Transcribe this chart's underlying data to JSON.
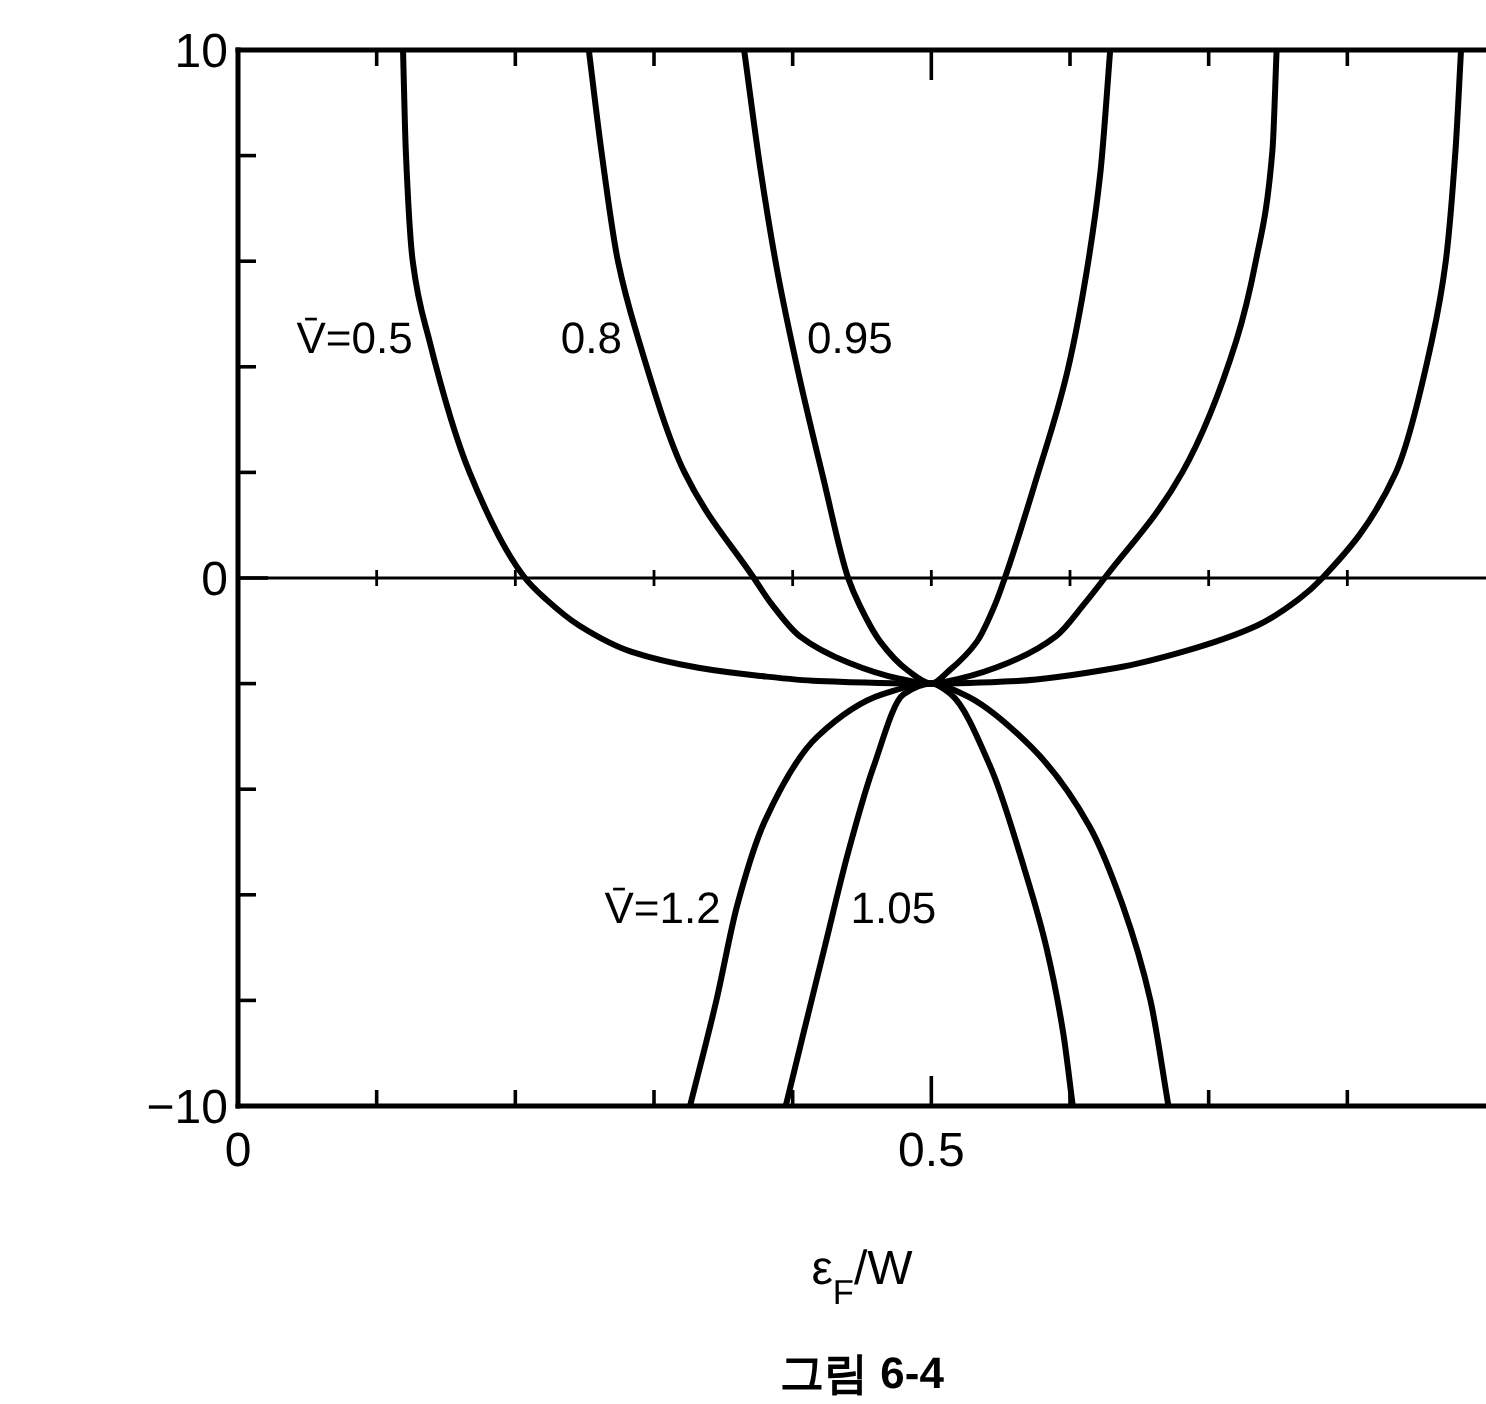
{
  "chart_data": {
    "type": "line",
    "xlabel": "ε$_{F}$/W",
    "annotations": [
      "그림 6-4"
    ],
    "xlim": [
      0,
      0.9
    ],
    "ylim": [
      -10,
      10
    ],
    "xticks": [
      0,
      {
        "value": 0.1,
        "label": null
      },
      {
        "value": 0.2,
        "label": null
      },
      {
        "value": 0.3,
        "label": null
      },
      {
        "value": 0.4,
        "label": null
      },
      0.5,
      {
        "value": 0.6,
        "label": null
      },
      {
        "value": 0.7,
        "label": null
      },
      {
        "value": 0.8,
        "label": null
      }
    ],
    "yticks": [
      {
        "value": -10,
        "label": "−10"
      },
      {
        "value": -8,
        "label": null
      },
      {
        "value": -6,
        "label": null
      },
      {
        "value": -4,
        "label": null
      },
      {
        "value": -2,
        "label": null
      },
      0,
      {
        "value": 2,
        "label": null
      },
      {
        "value": 4,
        "label": null
      },
      {
        "value": 6,
        "label": null
      },
      {
        "value": 8,
        "label": null
      },
      10
    ],
    "ref_lines": [
      {
        "axis": "y",
        "value": 0
      }
    ],
    "series": [
      {
        "name": "V̄=0.5",
        "color": "#000000",
        "x": [
          0.119,
          0.121,
          0.126,
          0.138,
          0.167,
          0.207,
          0.222,
          0.246,
          0.284,
          0.332,
          0.375,
          0.418,
          0.5,
          0.562,
          0.634,
          0.681,
          0.735,
          0.765,
          0.782,
          0.835,
          0.861,
          0.871,
          0.878,
          0.882
        ],
        "values": [
          10,
          8.1,
          6,
          4.5,
          2,
          0,
          -0.4,
          -0.9,
          -1.4,
          -1.7,
          -1.85,
          -1.95,
          -2,
          -1.95,
          -1.7,
          -1.4,
          -0.9,
          -0.4,
          0,
          2,
          4.5,
          6,
          8.1,
          10
        ]
      },
      {
        "name": "0.8",
        "color": "#000000",
        "x": [
          0.253,
          0.262,
          0.274,
          0.289,
          0.322,
          0.372,
          0.385,
          0.405,
          0.44,
          0.476,
          0.5,
          0.521,
          0.556,
          0.59,
          0.61,
          0.625,
          0.681,
          0.72,
          0.734,
          0.746,
          0.749
        ],
        "values": [
          10,
          8.1,
          6,
          4.5,
          2,
          0,
          -0.5,
          -1.1,
          -1.6,
          -1.9,
          -2,
          -1.9,
          -1.6,
          -1.1,
          -0.5,
          0,
          2,
          4.5,
          6,
          8.1,
          10
        ]
      },
      {
        "name": "0.95",
        "color": "#000000",
        "x": [
          0.365,
          0.377,
          0.389,
          0.404,
          0.422,
          0.44,
          0.448,
          0.463,
          0.483,
          0.5,
          0.513,
          0.533,
          0.546,
          0.553,
          0.576,
          0.598,
          0.612,
          0.622,
          0.629
        ],
        "values": [
          10,
          7.7,
          5.8,
          3.9,
          1.9,
          0,
          -0.5,
          -1.2,
          -1.75,
          -2,
          -1.75,
          -1.2,
          -0.5,
          0,
          1.9,
          3.9,
          5.8,
          7.7,
          10
        ]
      },
      {
        "name": "V̄=1.2",
        "color": "#000000",
        "x": [
          0.326,
          0.345,
          0.36,
          0.38,
          0.418,
          0.465,
          0.5,
          0.523,
          0.572,
          0.614,
          0.638,
          0.658,
          0.671
        ],
        "values": [
          -10,
          -8,
          -6.2,
          -4.6,
          -3,
          -2.2,
          -2,
          -2.2,
          -3.2,
          -4.7,
          -6.2,
          -8,
          -10
        ]
      },
      {
        "name": "1.05",
        "color": "#000000",
        "x": [
          0.395,
          0.408,
          0.423,
          0.44,
          0.458,
          0.48,
          0.5,
          0.514,
          0.543,
          0.567,
          0.583,
          0.595,
          0.602
        ],
        "values": [
          -10,
          -8.6,
          -7,
          -5.2,
          -3.6,
          -2.2,
          -2,
          -2.2,
          -3.6,
          -5.5,
          -7,
          -8.6,
          -10
        ]
      }
    ]
  }
}
